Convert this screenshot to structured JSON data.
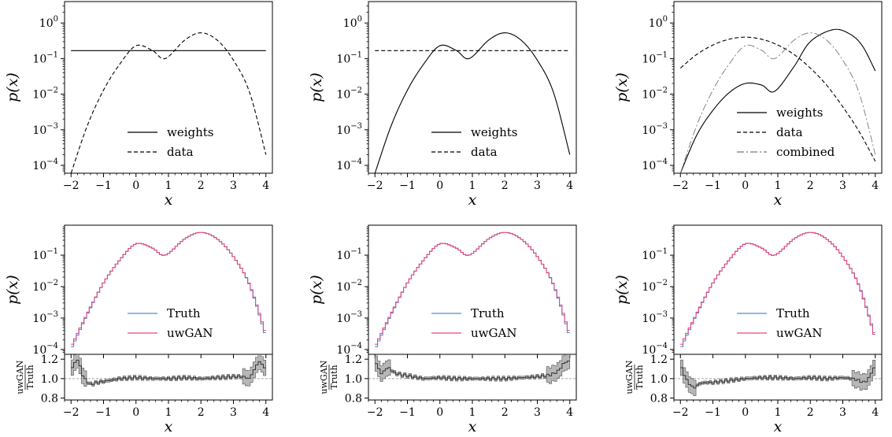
{
  "chart_data": [
    {
      "type": "line",
      "panel": "top-left",
      "yscale": "log",
      "xlabel": "x",
      "ylabel": "p(x)",
      "xlim": [
        -2.2,
        4.2
      ],
      "ylim": [
        6e-05,
        4
      ],
      "xticks": [
        "−2",
        "−1",
        "0",
        "1",
        "2",
        "3",
        "4"
      ],
      "yticks": [
        "10^0",
        "10^-1",
        "10^-2",
        "10^-3",
        "10^-4"
      ],
      "legend_position": "lower-center",
      "series": [
        {
          "name": "weights",
          "style": "solid",
          "x": [
            -2,
            4
          ],
          "y": [
            0.167,
            0.167
          ]
        },
        {
          "name": "data",
          "style": "dashed",
          "x": [
            -2,
            -1.5,
            -1,
            -0.5,
            0,
            0.5,
            0.9,
            1.5,
            2,
            2.5,
            3,
            3.5,
            4
          ],
          "y": [
            6e-05,
            0.0013,
            0.013,
            0.07,
            0.23,
            0.17,
            0.1,
            0.33,
            0.53,
            0.33,
            0.09,
            0.011,
            0.0002
          ]
        }
      ]
    },
    {
      "type": "line",
      "panel": "top-middle",
      "yscale": "log",
      "xlabel": "x",
      "ylabel": "p(x)",
      "xlim": [
        -2.2,
        4.2
      ],
      "ylim": [
        6e-05,
        4
      ],
      "xticks": [
        "−2",
        "−1",
        "0",
        "1",
        "2",
        "3",
        "4"
      ],
      "yticks": [
        "10^0",
        "10^-1",
        "10^-2",
        "10^-3",
        "10^-4"
      ],
      "legend_position": "lower-center",
      "series": [
        {
          "name": "weights",
          "style": "solid",
          "x": [
            -2,
            -1.5,
            -1,
            -0.5,
            0,
            0.5,
            0.9,
            1.5,
            2,
            2.5,
            3,
            3.5,
            4
          ],
          "y": [
            6e-05,
            0.0013,
            0.013,
            0.07,
            0.23,
            0.17,
            0.1,
            0.33,
            0.53,
            0.33,
            0.09,
            0.011,
            0.0002
          ]
        },
        {
          "name": "data",
          "style": "dashed",
          "x": [
            -2,
            4
          ],
          "y": [
            0.167,
            0.167
          ]
        }
      ]
    },
    {
      "type": "line",
      "panel": "top-right",
      "yscale": "log",
      "xlabel": "x",
      "ylabel": "p(x)",
      "xlim": [
        -2.2,
        4.2
      ],
      "ylim": [
        6e-05,
        4
      ],
      "xticks": [
        "−2",
        "−1",
        "0",
        "1",
        "2",
        "3",
        "4"
      ],
      "yticks": [
        "10^0",
        "10^-1",
        "10^-2",
        "10^-3",
        "10^-4"
      ],
      "legend_position": "lower-center",
      "series": [
        {
          "name": "weights",
          "style": "solid",
          "x": [
            -2,
            -1.5,
            -1,
            -0.5,
            0,
            0.5,
            0.9,
            1.5,
            2,
            2.7,
            3.2,
            3.6,
            4
          ],
          "y": [
            6e-05,
            0.0007,
            0.0035,
            0.011,
            0.02,
            0.018,
            0.012,
            0.06,
            0.3,
            0.65,
            0.5,
            0.23,
            0.045
          ]
        },
        {
          "name": "data",
          "style": "dashed",
          "x": [
            -2,
            -1.5,
            -1,
            -0.5,
            0,
            0.5,
            1,
            1.5,
            2,
            2.5,
            3,
            3.5,
            4
          ],
          "y": [
            0.054,
            0.13,
            0.24,
            0.35,
            0.4,
            0.35,
            0.24,
            0.13,
            0.054,
            0.018,
            0.0044,
            0.0009,
            0.00013
          ]
        },
        {
          "name": "combined",
          "style": "dashdot",
          "x": [
            -2,
            -1.5,
            -1,
            -0.5,
            0,
            0.5,
            0.9,
            1.5,
            2,
            2.5,
            3,
            3.5,
            4
          ],
          "y": [
            6e-05,
            0.0013,
            0.013,
            0.07,
            0.23,
            0.17,
            0.1,
            0.33,
            0.53,
            0.33,
            0.09,
            0.011,
            0.0002
          ]
        }
      ]
    },
    {
      "type": "line",
      "panel": "bottom-left",
      "yscale": "log",
      "xlabel": "x",
      "ylabel": "p(x)",
      "xlim": [
        -2.2,
        4.2
      ],
      "ylim": [
        7e-05,
        0.9
      ],
      "xticks": [
        "−2",
        "−1",
        "0",
        "1",
        "2",
        "3",
        "4"
      ],
      "yticks": [
        "10^-1",
        "10^-2",
        "10^-3",
        "10^-4"
      ],
      "legend_position": "lower-center",
      "colors": {
        "Truth": "#4a90d9",
        "uwGAN": "#e8467c"
      },
      "series": [
        {
          "name": "Truth",
          "x": [
            -2,
            -1.5,
            -1,
            -0.5,
            0,
            0.5,
            0.9,
            1.5,
            2,
            2.5,
            3,
            3.5,
            4
          ],
          "y": [
            0.0001,
            0.0013,
            0.013,
            0.07,
            0.23,
            0.17,
            0.1,
            0.33,
            0.53,
            0.33,
            0.09,
            0.011,
            0.00025
          ]
        },
        {
          "name": "uwGAN",
          "x": [
            -2,
            -1.5,
            -1,
            -0.5,
            0,
            0.5,
            0.9,
            1.5,
            2,
            2.5,
            3,
            3.5,
            4
          ],
          "y": [
            0.00012,
            0.0014,
            0.013,
            0.07,
            0.23,
            0.17,
            0.1,
            0.33,
            0.53,
            0.33,
            0.09,
            0.0115,
            0.0003
          ]
        }
      ],
      "ratio": {
        "ylabel_top": "uwGAN",
        "ylabel_bottom": "Truth",
        "ylim": [
          0.78,
          1.25
        ],
        "yticks": [
          "1.2",
          "1.0",
          "0.8"
        ],
        "reference": 1.0,
        "x": [
          -1.95,
          -1.8,
          -1.6,
          -1.4,
          -1.2,
          -1,
          -0.5,
          0,
          0.5,
          1,
          1.5,
          2,
          2.5,
          3,
          3.3,
          3.5,
          3.65,
          3.8,
          3.92
        ],
        "y": [
          1.12,
          1.2,
          1.0,
          0.94,
          0.96,
          0.97,
          1.0,
          1.01,
          1.0,
          1.0,
          1.01,
          1.0,
          1.01,
          1.02,
          1.02,
          1.0,
          1.1,
          1.18,
          1.12
        ]
      }
    },
    {
      "type": "line",
      "panel": "bottom-middle",
      "yscale": "log",
      "xlabel": "x",
      "ylabel": "p(x)",
      "xlim": [
        -2.2,
        4.2
      ],
      "ylim": [
        7e-05,
        0.9
      ],
      "xticks": [
        "−2",
        "−1",
        "0",
        "1",
        "2",
        "3",
        "4"
      ],
      "yticks": [
        "10^-1",
        "10^-2",
        "10^-3",
        "10^-4"
      ],
      "legend_position": "lower-center",
      "colors": {
        "Truth": "#4a90d9",
        "uwGAN": "#e8467c"
      },
      "series": [
        {
          "name": "Truth",
          "x": [
            -2,
            -1.5,
            -1,
            -0.5,
            0,
            0.5,
            0.9,
            1.5,
            2,
            2.5,
            3,
            3.5,
            4
          ],
          "y": [
            0.0001,
            0.0013,
            0.013,
            0.07,
            0.23,
            0.17,
            0.1,
            0.33,
            0.53,
            0.33,
            0.09,
            0.011,
            0.00025
          ]
        },
        {
          "name": "uwGAN",
          "x": [
            -2,
            -1.5,
            -1,
            -0.5,
            0,
            0.5,
            0.9,
            1.5,
            2,
            2.5,
            3,
            3.5,
            4
          ],
          "y": [
            0.00012,
            0.0014,
            0.013,
            0.07,
            0.23,
            0.17,
            0.1,
            0.33,
            0.53,
            0.33,
            0.09,
            0.0115,
            0.0003
          ]
        }
      ],
      "ratio": {
        "ylabel_top": "uwGAN",
        "ylabel_bottom": "Truth",
        "ylim": [
          0.78,
          1.25
        ],
        "yticks": [
          "1.2",
          "1.0",
          "0.8"
        ],
        "reference": 1.0,
        "x": [
          -1.95,
          -1.8,
          -1.6,
          -1.4,
          -1.2,
          -1,
          -0.5,
          0,
          0.5,
          1,
          1.5,
          2,
          2.5,
          3,
          3.3,
          3.5,
          3.65,
          3.8,
          3.92
        ],
        "y": [
          1.15,
          1.05,
          1.12,
          1.06,
          1.04,
          1.03,
          1.0,
          1.01,
          1.0,
          1.0,
          1.0,
          1.0,
          1.01,
          1.02,
          1.03,
          1.05,
          1.08,
          1.15,
          1.18
        ]
      }
    },
    {
      "type": "line",
      "panel": "bottom-right",
      "yscale": "log",
      "xlabel": "x",
      "ylabel": "p(x)",
      "xlim": [
        -2.2,
        4.2
      ],
      "ylim": [
        7e-05,
        0.9
      ],
      "xticks": [
        "−2",
        "−1",
        "0",
        "1",
        "2",
        "3",
        "4"
      ],
      "yticks": [
        "10^-1",
        "10^-2",
        "10^-3",
        "10^-4"
      ],
      "legend_position": "lower-center",
      "colors": {
        "Truth": "#4a90d9",
        "uwGAN": "#e8467c"
      },
      "series": [
        {
          "name": "Truth",
          "x": [
            -2,
            -1.5,
            -1,
            -0.5,
            0,
            0.5,
            0.9,
            1.5,
            2,
            2.5,
            3,
            3.5,
            4
          ],
          "y": [
            0.0001,
            0.0013,
            0.013,
            0.07,
            0.23,
            0.17,
            0.1,
            0.33,
            0.53,
            0.33,
            0.09,
            0.011,
            0.00025
          ]
        },
        {
          "name": "uwGAN",
          "x": [
            -2,
            -1.5,
            -1,
            -0.5,
            0,
            0.5,
            0.9,
            1.5,
            2,
            2.5,
            3,
            3.5,
            4
          ],
          "y": [
            0.00012,
            0.0014,
            0.013,
            0.07,
            0.23,
            0.17,
            0.1,
            0.33,
            0.53,
            0.33,
            0.09,
            0.0105,
            0.00022
          ]
        }
      ],
      "ratio": {
        "ylabel_top": "uwGAN",
        "ylabel_bottom": "Truth",
        "ylim": [
          0.78,
          1.25
        ],
        "yticks": [
          "1.2",
          "1.0",
          "0.8"
        ],
        "reference": 1.0,
        "x": [
          -1.95,
          -1.8,
          -1.6,
          -1.4,
          -1.2,
          -1,
          -0.5,
          0,
          0.5,
          1,
          1.5,
          2,
          2.5,
          3,
          3.3,
          3.5,
          3.65,
          3.8,
          3.92
        ],
        "y": [
          1.1,
          0.98,
          0.9,
          0.95,
          0.96,
          0.96,
          0.98,
          1.0,
          1.01,
          1.01,
          1.0,
          1.01,
          1.0,
          1.01,
          1.0,
          0.98,
          0.96,
          1.0,
          1.1
        ]
      }
    }
  ]
}
